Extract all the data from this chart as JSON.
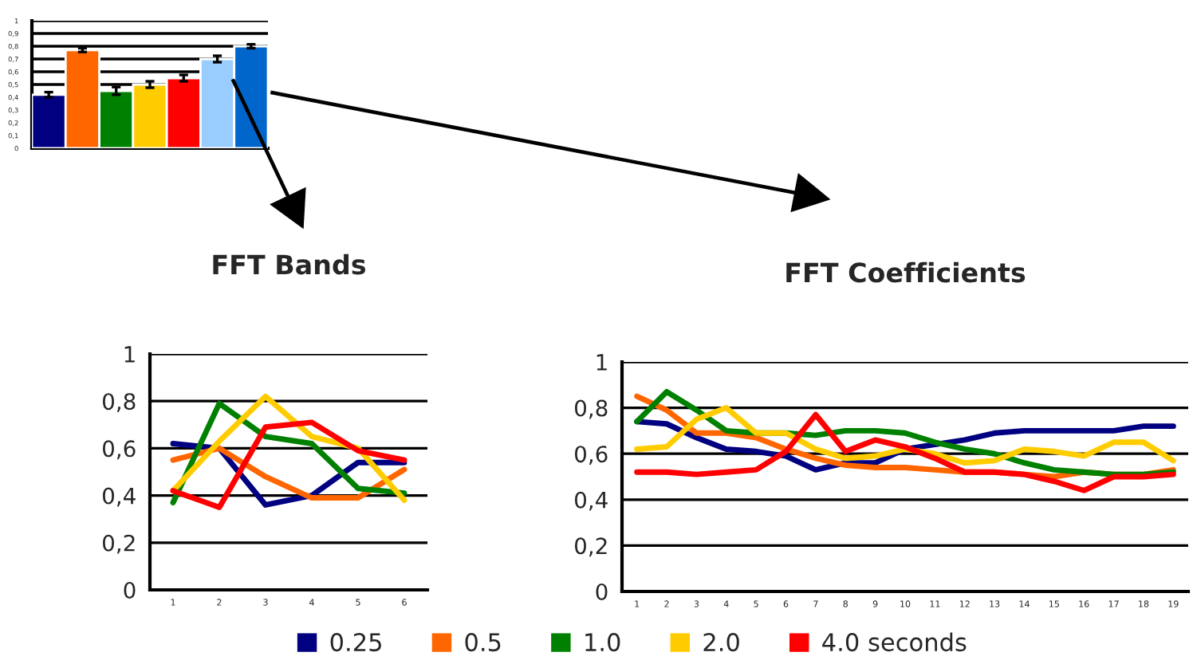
{
  "chart_data": [
    {
      "type": "bar",
      "categories": [
        null,
        null,
        null,
        null,
        null,
        null,
        null
      ],
      "values": [
        0.42,
        0.77,
        0.45,
        0.5,
        0.55,
        0.7,
        0.8
      ],
      "colors": [
        "#000080",
        "#ff6600",
        "#008000",
        "#ffcc00",
        "#ff0000",
        "#99ccff",
        "#0066cc"
      ],
      "errors": [
        0.02,
        0.015,
        0.03,
        0.025,
        0.025,
        0.025,
        0.015
      ],
      "ylim": [
        0,
        1
      ],
      "yticks": [
        0,
        {
          "value": 0.1,
          "label": "0,1"
        },
        {
          "value": 0.2,
          "label": "0,2"
        },
        {
          "value": 0.3,
          "label": "0,3"
        },
        {
          "value": 0.4,
          "label": "0,4"
        },
        {
          "value": 0.5,
          "label": "0,5"
        },
        {
          "value": 0.6,
          "label": "0,6"
        },
        {
          "value": 0.7,
          "label": "0,7"
        },
        {
          "value": 0.8,
          "label": "0,8"
        },
        {
          "value": 0.9,
          "label": "0,9"
        },
        1
      ],
      "grid": "y"
    },
    {
      "type": "line",
      "title": "FFT Bands",
      "categories": [
        "1",
        "2",
        "3",
        "4",
        "5",
        "6"
      ],
      "series": [
        {
          "color": "#000080",
          "values": [
            0.62,
            0.6,
            0.36,
            0.4,
            0.54,
            0.54
          ]
        },
        {
          "color": "#ff6600",
          "values": [
            0.55,
            0.6,
            0.48,
            0.39,
            0.39,
            0.51
          ]
        },
        {
          "color": "#008000",
          "values": [
            0.37,
            0.79,
            0.65,
            0.62,
            0.43,
            0.41
          ]
        },
        {
          "color": "#ffcc00",
          "values": [
            0.42,
            0.63,
            0.82,
            0.65,
            0.6,
            0.38
          ]
        },
        {
          "color": "#ff0000",
          "values": [
            0.42,
            0.35,
            0.69,
            0.71,
            0.59,
            0.55
          ]
        }
      ],
      "ylim": [
        0,
        1
      ],
      "yticks": [
        0,
        {
          "value": 0.2,
          "label": "0,2"
        },
        {
          "value": 0.4,
          "label": "0,4"
        },
        {
          "value": 0.6,
          "label": "0,6"
        },
        {
          "value": 0.8,
          "label": "0,8"
        },
        1
      ],
      "grid": "y"
    },
    {
      "type": "line",
      "title": "FFT Coefficients",
      "categories": [
        "1",
        "2",
        "3",
        "4",
        "5",
        "6",
        "7",
        "8",
        "9",
        "10",
        "11",
        "12",
        "13",
        "14",
        "15",
        "16",
        "17",
        "18",
        "19"
      ],
      "series": [
        {
          "name": "0.25",
          "color": "#000080",
          "values": [
            0.74,
            0.73,
            0.67,
            0.62,
            0.61,
            0.59,
            0.53,
            0.56,
            0.56,
            0.62,
            0.64,
            0.66,
            0.69,
            0.7,
            0.7,
            0.7,
            0.7,
            0.72,
            0.72
          ]
        },
        {
          "name": "0.5",
          "color": "#ff6600",
          "values": [
            0.85,
            0.79,
            0.69,
            0.69,
            0.67,
            0.62,
            0.58,
            0.55,
            0.54,
            0.54,
            0.53,
            0.52,
            0.52,
            0.51,
            0.5,
            0.52,
            0.51,
            0.51,
            0.53
          ]
        },
        {
          "name": "1.0",
          "color": "#008000",
          "values": [
            0.74,
            0.87,
            0.79,
            0.7,
            0.69,
            0.69,
            0.68,
            0.7,
            0.7,
            0.69,
            0.65,
            0.62,
            0.6,
            0.56,
            0.53,
            0.52,
            0.51,
            0.51,
            0.52
          ]
        },
        {
          "name": "2.0",
          "color": "#ffcc00",
          "values": [
            0.62,
            0.63,
            0.75,
            0.8,
            0.69,
            0.69,
            0.62,
            0.58,
            0.59,
            0.62,
            0.6,
            0.56,
            0.57,
            0.62,
            0.61,
            0.59,
            0.65,
            0.65,
            0.57
          ]
        },
        {
          "name": "4.0 seconds",
          "color": "#ff0000",
          "values": [
            0.52,
            0.52,
            0.51,
            0.52,
            0.53,
            0.61,
            0.77,
            0.61,
            0.66,
            0.63,
            0.58,
            0.52,
            0.52,
            0.51,
            0.48,
            0.44,
            0.5,
            0.5,
            0.51
          ]
        }
      ],
      "ylim": [
        0,
        1
      ],
      "yticks": [
        0,
        {
          "value": 0.2,
          "label": "0,2"
        },
        {
          "value": 0.4,
          "label": "0,4"
        },
        {
          "value": 0.6,
          "label": "0,6"
        },
        {
          "value": 0.8,
          "label": "0,8"
        },
        1
      ],
      "grid": "y",
      "legend": "bottom"
    }
  ]
}
